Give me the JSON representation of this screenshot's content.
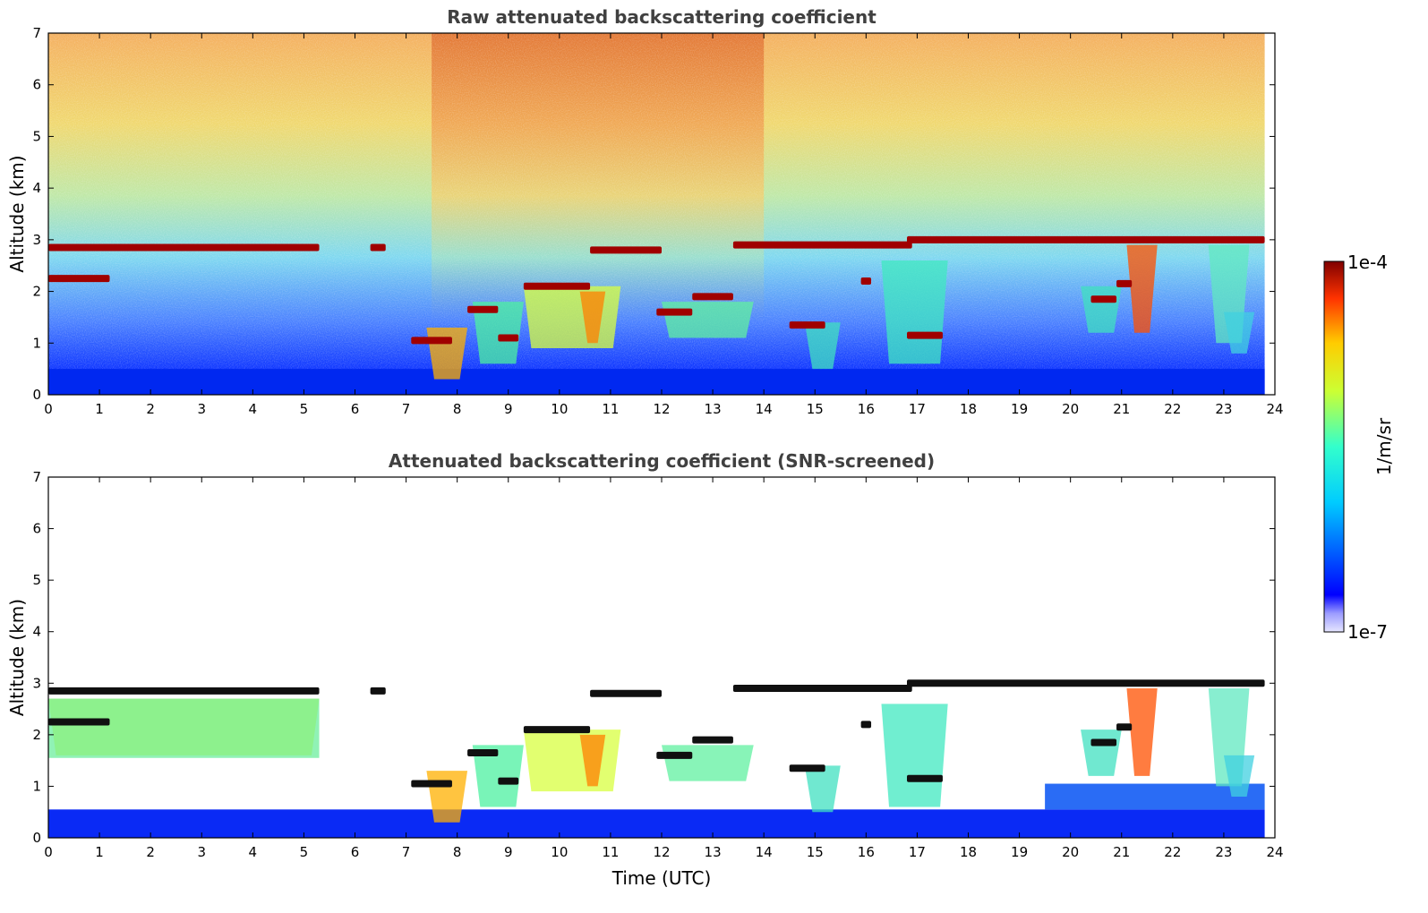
{
  "chart_data": [
    {
      "type": "heatmap",
      "title": "Raw attenuated backscattering coefficient",
      "xlabel": "",
      "ylabel": "Altitude (km)",
      "xlim": [
        0,
        24
      ],
      "ylim": [
        0,
        7
      ],
      "x_ticks": [
        "0",
        "1",
        "2",
        "3",
        "4",
        "5",
        "6",
        "7",
        "8",
        "9",
        "10",
        "11",
        "12",
        "13",
        "14",
        "15",
        "16",
        "17",
        "18",
        "19",
        "20",
        "21",
        "22",
        "23",
        "24"
      ],
      "y_ticks": [
        "0",
        "1",
        "2",
        "3",
        "4",
        "5",
        "6",
        "7"
      ],
      "data_end_time": 23.8,
      "cloud_layers": [
        {
          "t0": 0.0,
          "t1": 5.3,
          "alt": 2.85
        },
        {
          "t0": 0.0,
          "t1": 1.2,
          "alt": 2.25
        },
        {
          "t0": 6.3,
          "t1": 6.6,
          "alt": 2.85
        },
        {
          "t0": 7.1,
          "t1": 7.9,
          "alt": 1.05
        },
        {
          "t0": 8.2,
          "t1": 8.8,
          "alt": 1.65
        },
        {
          "t0": 8.8,
          "t1": 9.2,
          "alt": 1.1
        },
        {
          "t0": 9.3,
          "t1": 10.6,
          "alt": 2.1
        },
        {
          "t0": 10.6,
          "t1": 12.0,
          "alt": 2.8
        },
        {
          "t0": 11.9,
          "t1": 12.6,
          "alt": 1.6
        },
        {
          "t0": 12.6,
          "t1": 13.4,
          "alt": 1.9
        },
        {
          "t0": 13.4,
          "t1": 16.9,
          "alt": 2.9
        },
        {
          "t0": 14.5,
          "t1": 15.2,
          "alt": 1.35
        },
        {
          "t0": 15.9,
          "t1": 16.1,
          "alt": 2.2
        },
        {
          "t0": 16.8,
          "t1": 23.8,
          "alt": 3.0
        },
        {
          "t0": 16.8,
          "t1": 17.5,
          "alt": 1.15
        },
        {
          "t0": 20.4,
          "t1": 20.9,
          "alt": 1.85
        },
        {
          "t0": 20.9,
          "t1": 21.2,
          "alt": 2.15
        }
      ]
    },
    {
      "type": "heatmap",
      "title": "Attenuated backscattering coefficient (SNR-screened)",
      "xlabel": "Time (UTC)",
      "ylabel": "Altitude (km)",
      "xlim": [
        0,
        24
      ],
      "ylim": [
        0,
        7
      ],
      "x_ticks": [
        "0",
        "1",
        "2",
        "3",
        "4",
        "5",
        "6",
        "7",
        "8",
        "9",
        "10",
        "11",
        "12",
        "13",
        "14",
        "15",
        "16",
        "17",
        "18",
        "19",
        "20",
        "21",
        "22",
        "23",
        "24"
      ],
      "y_ticks": [
        "0",
        "1",
        "2",
        "3",
        "4",
        "5",
        "6",
        "7"
      ],
      "data_end_time": 23.8
    }
  ],
  "colorbar": {
    "label": "1/m/sr",
    "max_label": "1e-4",
    "min_label": "1e-7",
    "colormap": "jet",
    "min_value": 1e-07,
    "max_value": 0.0001
  }
}
